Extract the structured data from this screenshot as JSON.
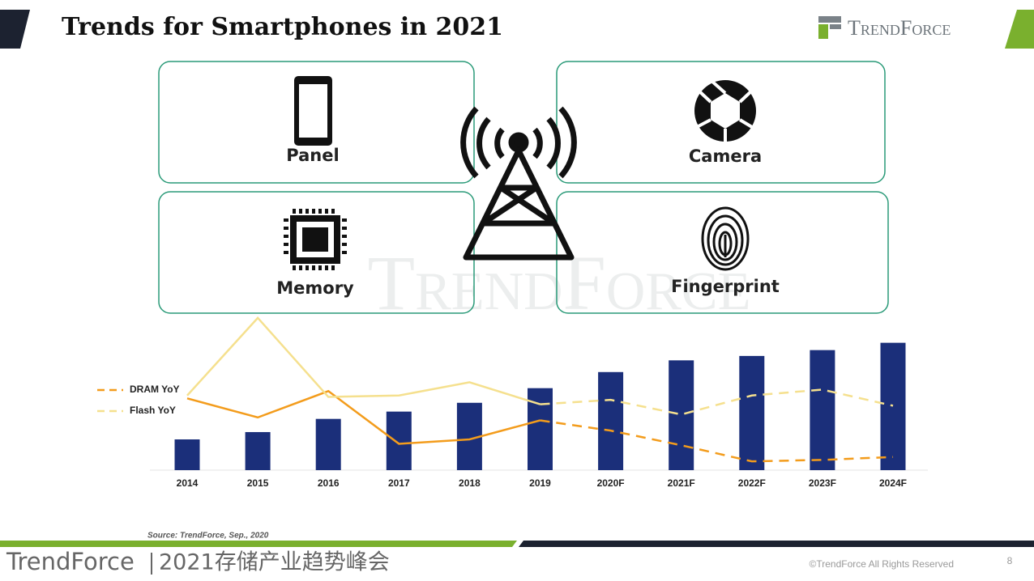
{
  "header": {
    "title": "Trends for Smartphones in 2021",
    "logo": "TrendForce"
  },
  "features": [
    {
      "label": "Panel"
    },
    {
      "label": "Camera"
    },
    {
      "label": "Memory"
    },
    {
      "label": "Fingerprint"
    }
  ],
  "watermark": "TrendForce",
  "chart_data": {
    "type": "bar-line",
    "categories": [
      "2014",
      "2015",
      "2016",
      "2017",
      "2018",
      "2019",
      "2020F",
      "2021F",
      "2022F",
      "2023F",
      "2024F"
    ],
    "values": [
      21,
      26,
      35,
      40,
      46,
      56,
      67,
      75,
      78,
      82,
      87
    ],
    "color": "#1b2f7a",
    "series": [
      {
        "name": "DRAM YoY",
        "color": "#f39c1c",
        "values": [
          49,
          36,
          54,
          18,
          21,
          34,
          27,
          17,
          6,
          7,
          9
        ]
      },
      {
        "name": "Flash YoY",
        "color": "#f5e08e",
        "values": [
          51,
          104,
          50,
          51,
          60,
          45,
          48,
          38,
          51,
          55,
          44
        ]
      }
    ],
    "ylim": [
      0,
      110
    ]
  },
  "source": "Source: TrendForce, Sep., 2020",
  "footer": {
    "brand": "TrendForce",
    "event": "2021存储产业趋势峰会",
    "copyright": "©TrendForce All Rights Reserved",
    "page": "8"
  }
}
